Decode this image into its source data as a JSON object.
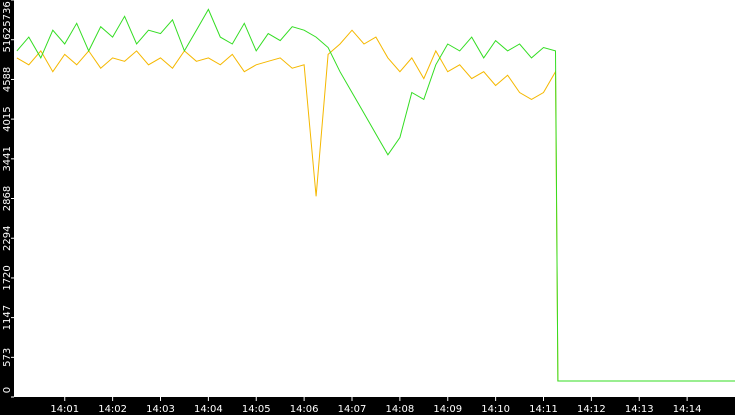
{
  "chart_data": {
    "type": "line",
    "x": [
      0,
      0.25,
      0.5,
      0.75,
      1,
      1.25,
      1.5,
      1.75,
      2,
      2.25,
      2.5,
      2.75,
      3,
      3.25,
      3.5,
      3.75,
      4,
      4.25,
      4.5,
      4.75,
      5,
      5.25,
      5.5,
      5.75,
      6,
      6.25,
      6.5,
      6.75,
      7,
      7.25,
      7.5,
      7.75,
      8,
      8.25,
      8.5,
      8.75,
      9,
      9.25,
      9.5,
      9.75,
      10,
      10.25,
      10.5,
      10.75,
      11,
      11.25,
      11.3,
      15
    ],
    "series": [
      {
        "color": "#f5b800",
        "values": [
          4900,
          4800,
          5000,
          4700,
          4950,
          4800,
          5000,
          4750,
          4900,
          4850,
          5000,
          4800,
          4900,
          4750,
          5000,
          4850,
          4900,
          4800,
          4950,
          4700,
          4800,
          4850,
          4900,
          4750,
          4800,
          2900,
          4950,
          5100,
          5300,
          5100,
          5200,
          4900,
          4700,
          4900,
          4600,
          5000,
          4700,
          4800,
          4600,
          4700,
          4500,
          4650,
          4400,
          4300,
          4400,
          4700,
          231,
          231
        ]
      },
      {
        "color": "#33dd22",
        "values": [
          5000,
          5200,
          4900,
          5300,
          5100,
          5400,
          5000,
          5350,
          5200,
          5500,
          5100,
          5300,
          5250,
          5450,
          5000,
          5300,
          5600,
          5200,
          5100,
          5400,
          5000,
          5250,
          5150,
          5350,
          5300,
          5200,
          5050,
          4700,
          4400,
          4100,
          3800,
          3500,
          3750,
          4400,
          4300,
          4800,
          5100,
          5000,
          5200,
          4900,
          5150,
          5000,
          5100,
          4900,
          5050,
          5000,
          231,
          231
        ]
      }
    ],
    "xlim": [
      -0.06,
      15
    ],
    "xticks": [
      {
        "value": 1,
        "label": "14:01"
      },
      {
        "value": 2,
        "label": "14:02"
      },
      {
        "value": 3,
        "label": "14:03"
      },
      {
        "value": 4,
        "label": "14:04"
      },
      {
        "value": 5,
        "label": "14:05"
      },
      {
        "value": 6,
        "label": "14:06"
      },
      {
        "value": 7,
        "label": "14:07"
      },
      {
        "value": 8,
        "label": "14:08"
      },
      {
        "value": 9,
        "label": "14:09"
      },
      {
        "value": 10,
        "label": "14:10"
      },
      {
        "value": 11,
        "label": "14:11"
      },
      {
        "value": 12,
        "label": "14:12"
      },
      {
        "value": 13,
        "label": "14:13"
      },
      {
        "value": 14,
        "label": "14:14"
      }
    ],
    "ylim": [
      0,
      5736
    ],
    "yticks": [
      0,
      573,
      1147,
      1720,
      2294,
      2868,
      3441,
      4015,
      4588,
      5162,
      5736
    ]
  }
}
